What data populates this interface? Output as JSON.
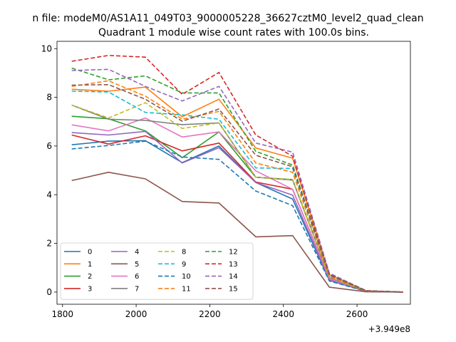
{
  "suptitle": "n file: modeM0/AS1A11_049T03_9000005228_36627cztM0_level2_quad_clean",
  "chart_data": {
    "type": "line",
    "title": "Quadrant 1 module wise count rates with 100.0s bins.",
    "xlabel": "",
    "ylabel": "",
    "x_offset_label": "+3.949e8",
    "xlim": [
      1785,
      2745
    ],
    "ylim": [
      -0.5,
      10.3
    ],
    "xticks": [
      1800,
      2000,
      2200,
      2400,
      2600
    ],
    "xtick_labels": [
      "1800",
      "2000",
      "2200",
      "2400",
      "2600"
    ],
    "yticks": [
      0,
      2,
      4,
      6,
      8,
      10
    ],
    "ytick_labels": [
      "0",
      "2",
      "4",
      "6",
      "8",
      "10"
    ],
    "grid": false,
    "legend_position": "lower-left",
    "legend_columns": 4,
    "x": [
      1825,
      1925,
      2025,
      2125,
      2225,
      2325,
      2425,
      2525,
      2625,
      2725
    ],
    "series": [
      {
        "name": "0",
        "color": "#1f77b4",
        "dash": "solid",
        "values": [
          6.05,
          6.2,
          6.22,
          5.32,
          6.0,
          4.5,
          3.82,
          0.48,
          0.03,
          0.0
        ]
      },
      {
        "name": "1",
        "color": "#ff7f0e",
        "dash": "solid",
        "values": [
          8.33,
          8.25,
          8.42,
          7.2,
          7.92,
          5.92,
          5.5,
          0.72,
          0.05,
          0.0
        ]
      },
      {
        "name": "2",
        "color": "#2ca02c",
        "dash": "solid",
        "values": [
          7.22,
          7.12,
          6.62,
          5.52,
          6.58,
          4.72,
          4.62,
          0.62,
          0.04,
          0.0
        ]
      },
      {
        "name": "3",
        "color": "#d62728",
        "dash": "solid",
        "values": [
          6.45,
          6.08,
          6.42,
          5.8,
          6.12,
          4.52,
          4.22,
          0.55,
          0.03,
          0.0
        ]
      },
      {
        "name": "4",
        "color": "#9467bd",
        "dash": "solid",
        "values": [
          6.55,
          6.45,
          6.6,
          5.3,
          5.93,
          4.5,
          3.98,
          0.5,
          0.03,
          0.0
        ]
      },
      {
        "name": "5",
        "color": "#8c564b",
        "dash": "solid",
        "values": [
          4.58,
          4.92,
          4.65,
          3.72,
          3.66,
          2.27,
          2.32,
          0.2,
          0.01,
          0.0
        ]
      },
      {
        "name": "6",
        "color": "#e377c2",
        "dash": "solid",
        "values": [
          6.87,
          6.62,
          7.15,
          6.37,
          6.58,
          4.98,
          4.22,
          0.55,
          0.03,
          0.0
        ]
      },
      {
        "name": "7",
        "color": "#7f7f7f",
        "dash": "solid",
        "values": [
          7.68,
          7.1,
          7.05,
          6.88,
          6.95,
          4.72,
          4.6,
          0.6,
          0.04,
          0.0
        ]
      },
      {
        "name": "8",
        "color": "#bcbd22",
        "dash": "dashed",
        "values": [
          7.68,
          7.15,
          7.78,
          6.72,
          6.95,
          4.72,
          4.62,
          0.62,
          0.04,
          0.0
        ]
      },
      {
        "name": "9",
        "color": "#17becf",
        "dash": "dashed",
        "values": [
          8.25,
          8.22,
          7.38,
          7.28,
          7.1,
          5.1,
          5.08,
          0.68,
          0.05,
          0.0
        ]
      },
      {
        "name": "10",
        "color": "#1f77b4",
        "dash": "dashed",
        "values": [
          5.88,
          6.02,
          6.2,
          5.55,
          5.45,
          4.15,
          3.55,
          0.45,
          0.03,
          0.0
        ]
      },
      {
        "name": "11",
        "color": "#ff7f0e",
        "dash": "dashed",
        "values": [
          8.45,
          8.68,
          8.05,
          7.1,
          7.42,
          5.3,
          4.92,
          0.65,
          0.04,
          0.0
        ]
      },
      {
        "name": "12",
        "color": "#2ca02c",
        "dash": "dashed",
        "values": [
          9.2,
          8.72,
          8.88,
          8.18,
          8.18,
          5.78,
          5.22,
          0.72,
          0.05,
          0.0
        ]
      },
      {
        "name": "13",
        "color": "#d62728",
        "dash": "dashed",
        "values": [
          9.48,
          9.72,
          9.65,
          8.12,
          9.02,
          6.45,
          5.58,
          0.75,
          0.06,
          0.0
        ]
      },
      {
        "name": "14",
        "color": "#9467bd",
        "dash": "dashed",
        "values": [
          9.1,
          9.15,
          8.45,
          7.85,
          8.45,
          6.12,
          5.75,
          0.78,
          0.05,
          0.0
        ]
      },
      {
        "name": "15",
        "color": "#8c564b",
        "dash": "dashed",
        "values": [
          8.5,
          8.52,
          7.92,
          7.02,
          7.52,
          5.62,
          5.15,
          0.7,
          0.05,
          0.0
        ]
      }
    ]
  }
}
